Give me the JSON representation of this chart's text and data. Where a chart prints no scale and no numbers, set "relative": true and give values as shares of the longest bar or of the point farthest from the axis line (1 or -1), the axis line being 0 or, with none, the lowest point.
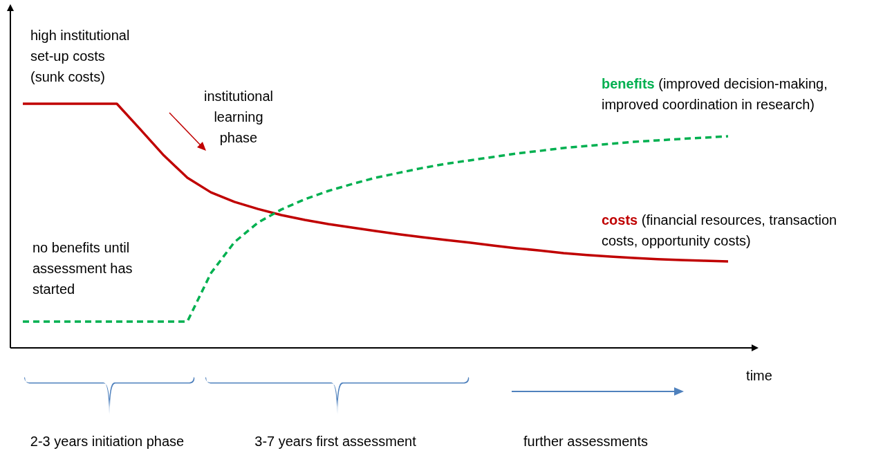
{
  "chart_data": {
    "type": "line",
    "relative": true,
    "xlabel": "time",
    "legend": false,
    "categories": [
      null,
      null,
      null,
      null,
      null,
      null,
      null,
      null,
      null,
      null,
      null,
      null,
      null,
      null,
      null,
      null,
      null,
      null,
      null,
      null,
      null,
      null,
      null,
      null,
      null,
      null,
      null,
      null,
      null,
      null,
      null
    ],
    "series": [
      {
        "name": "costs",
        "color": "#c00000",
        "line_style": "solid",
        "values": [
          1,
          1,
          1,
          1,
          1,
          0.895,
          0.788,
          0.697,
          0.637,
          0.598,
          0.569,
          0.544,
          0.524,
          0.507,
          0.493,
          0.479,
          0.465,
          0.453,
          0.442,
          0.431,
          0.419,
          0.408,
          0.399,
          0.388,
          0.38,
          0.374,
          0.368,
          0.363,
          0.36,
          0.357,
          0.354
        ]
      },
      {
        "name": "benefits",
        "color": "#00b050",
        "line_style": "dashed",
        "values": [
          0.108,
          0.108,
          0.108,
          0.108,
          0.108,
          0.108,
          0.108,
          0.108,
          0.306,
          0.433,
          0.513,
          0.567,
          0.609,
          0.643,
          0.671,
          0.697,
          0.717,
          0.737,
          0.754,
          0.768,
          0.782,
          0.796,
          0.807,
          0.819,
          0.827,
          0.836,
          0.844,
          0.85,
          0.856,
          0.861,
          0.867
        ]
      }
    ],
    "annotations": [
      "high institutional set-up costs (sunk costs)",
      "institutional learning phase",
      "no benefits until assessment has started",
      "(financial resources, transaction costs, opportunity costs)",
      "(improved decision-making, improved coordination in research)",
      "2-3 years initiation phase",
      "3-7 years first assessment",
      "further assessments"
    ]
  }
}
